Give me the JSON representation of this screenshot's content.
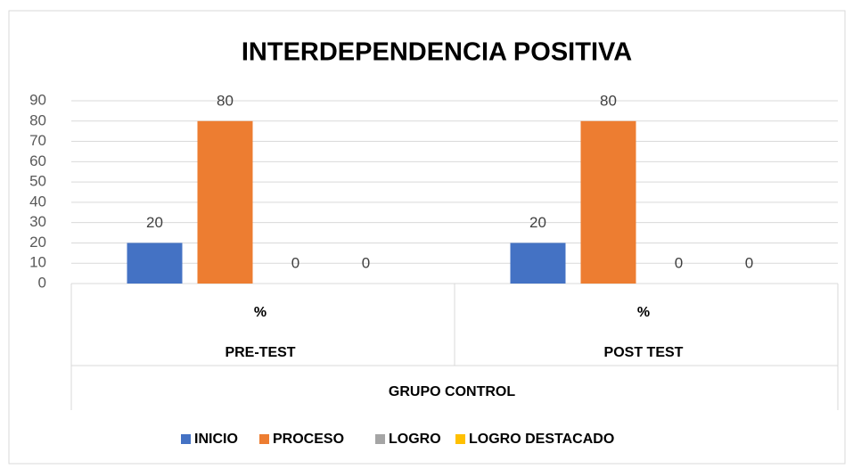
{
  "chart_data": {
    "type": "bar",
    "title": "INTERDEPENDENCIA  POSITIVA",
    "categories": [
      "%",
      "%"
    ],
    "groups": [
      "PRE-TEST",
      "POST TEST"
    ],
    "supergroup": "GRUPO CONTROL",
    "series": [
      {
        "name": "INICIO",
        "color": "#4472c4",
        "values": [
          20,
          20
        ]
      },
      {
        "name": "PROCESO",
        "color": "#ed7d31",
        "values": [
          80,
          80
        ]
      },
      {
        "name": "LOGRO",
        "color": "#a5a5a5",
        "values": [
          0,
          0
        ]
      },
      {
        "name": "LOGRO DESTACADO",
        "color": "#ffc000",
        "values": [
          0,
          0
        ]
      }
    ],
    "ylim": [
      0,
      90
    ],
    "yticks": [
      0,
      10,
      20,
      30,
      40,
      50,
      60,
      70,
      80,
      90
    ],
    "grid": true
  }
}
